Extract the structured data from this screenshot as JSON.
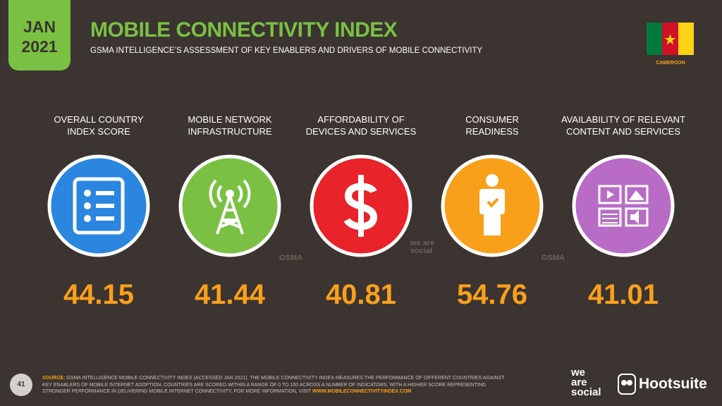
{
  "header": {
    "date_line1": "JAN",
    "date_line2": "2021",
    "title": "MOBILE CONNECTIVITY INDEX",
    "subtitle": "GSMA INTELLIGENCE’S ASSESSMENT OF KEY ENABLERS AND DRIVERS OF MOBILE CONNECTIVITY",
    "country": "CAMEROON"
  },
  "indicators": [
    {
      "label": [
        "OVERALL COUNTRY",
        "INDEX SCORE"
      ],
      "value": "44.15",
      "color": "#2b86e0"
    },
    {
      "label": [
        "MOBILE NETWORK",
        "INFRASTRUCTURE"
      ],
      "value": "41.44",
      "color": "#7ac143"
    },
    {
      "label": [
        "AFFORDABILITY OF",
        "DEVICES AND SERVICES"
      ],
      "value": "40.81",
      "color": "#e8232a"
    },
    {
      "label": [
        "CONSUMER",
        "READINESS"
      ],
      "value": "54.76",
      "color": "#f9a01b"
    },
    {
      "label": [
        "AVAILABILITY OF RELEVANT",
        "CONTENT AND SERVICES"
      ],
      "value": "41.01",
      "color": "#b86cc6"
    }
  ],
  "watermarks": [
    "GSMA",
    "we are social",
    "GSMA"
  ],
  "footer": {
    "page": "41",
    "source_label": "SOURCE:",
    "source_lines": [
      "GSMA INTELLIGENCE MOBILE CONNECTIVITY INDEX (ACCESSED JAN 2021). THE MOBILE CONNECTIVITY INDEX MEASURES THE PERFORMANCE OF DIFFERENT COUNTRIES AGAINST",
      "KEY ENABLERS OF MOBILE INTERNET ADOPTION. COUNTRIES ARE SCORED WITHIN A RANGE OF 0 TO 100 ACROSS A NUMBER OF INDICATORS, WITH A HIGHER SCORE REPRESENTING",
      "STRONGER PERFORMANCE IN DELIVERING MOBILE INTERNET CONNECTIVITY. FOR MORE INFORMATION, VISIT"
    ],
    "source_link": "WWW.MOBILECONNECTIVITYINDEX.COM",
    "brand1": [
      "we",
      "are",
      "social"
    ],
    "brand2": "Hootsuite"
  }
}
